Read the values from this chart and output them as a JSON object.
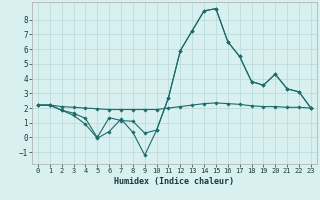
{
  "xlabel": "Humidex (Indice chaleur)",
  "background_color": "#d8f0f0",
  "grid_color": "#b8d8d8",
  "line_color": "#1a6b6b",
  "xlim": [
    -0.5,
    23.5
  ],
  "ylim": [
    -1.8,
    9.2
  ],
  "xticks": [
    0,
    1,
    2,
    3,
    4,
    5,
    6,
    7,
    8,
    9,
    10,
    11,
    12,
    13,
    14,
    15,
    16,
    17,
    18,
    19,
    20,
    21,
    22,
    23
  ],
  "yticks": [
    -1,
    0,
    1,
    2,
    3,
    4,
    5,
    6,
    7,
    8
  ],
  "line1_x": [
    0,
    1,
    2,
    3,
    4,
    5,
    6,
    7,
    8,
    9,
    10,
    11,
    12,
    13,
    14,
    15,
    16,
    17,
    18,
    19,
    20,
    21,
    22,
    23
  ],
  "line1_y": [
    2.2,
    2.2,
    1.85,
    1.65,
    1.3,
    0.0,
    1.35,
    1.15,
    1.1,
    0.3,
    0.5,
    2.7,
    5.9,
    7.25,
    8.6,
    8.75,
    6.5,
    5.5,
    3.8,
    3.55,
    4.3,
    3.3,
    3.1,
    2.0
  ],
  "line2_x": [
    0,
    1,
    2,
    3,
    4,
    5,
    6,
    7,
    8,
    9,
    10,
    11,
    12,
    13,
    14,
    15,
    16,
    17,
    18,
    19,
    20,
    21,
    22,
    23
  ],
  "line2_y": [
    2.2,
    2.2,
    1.85,
    1.5,
    0.9,
    -0.05,
    0.4,
    1.25,
    0.35,
    -1.2,
    0.5,
    2.7,
    5.9,
    7.25,
    8.6,
    8.75,
    6.5,
    5.5,
    3.8,
    3.55,
    4.3,
    3.3,
    3.1,
    2.0
  ],
  "line3_x": [
    0,
    1,
    2,
    3,
    4,
    5,
    6,
    7,
    8,
    9,
    10,
    11,
    12,
    13,
    14,
    15,
    16,
    17,
    18,
    19,
    20,
    21,
    22,
    23
  ],
  "line3_y": [
    2.2,
    2.2,
    2.1,
    2.05,
    2.0,
    1.95,
    1.9,
    1.9,
    1.9,
    1.9,
    1.9,
    2.0,
    2.1,
    2.2,
    2.3,
    2.35,
    2.3,
    2.25,
    2.15,
    2.1,
    2.1,
    2.05,
    2.05,
    2.0
  ],
  "marker": "D",
  "markersize": 1.8,
  "linewidth": 0.8
}
